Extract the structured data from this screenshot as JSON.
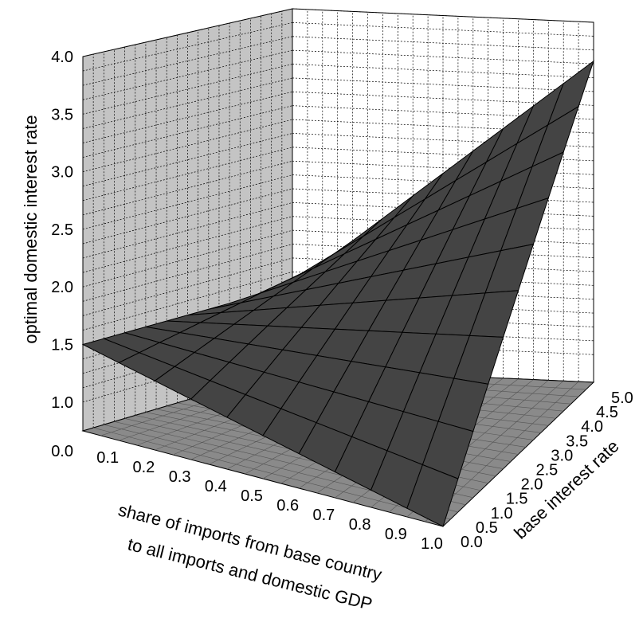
{
  "chart_data": {
    "type": "surface3d",
    "title": "",
    "xlabel_line1": "share of imports from base country",
    "xlabel_line2": "to all imports and domestic GDP",
    "ylabel": "base interest rate",
    "zlabel": "optimal domestic interest rate",
    "x_ticks": [
      "0.0",
      "0.1",
      "0.2",
      "0.3",
      "0.4",
      "0.5",
      "0.6",
      "0.7",
      "0.8",
      "0.9",
      "1.0"
    ],
    "y_ticks": [
      "0.0",
      "0.5",
      "1.0",
      "1.5",
      "2.0",
      "2.5",
      "3.0",
      "3.5",
      "4.0",
      "4.5",
      "5.0"
    ],
    "z_ticks": [
      "1.0",
      "1.5",
      "2.0",
      "2.5",
      "3.0",
      "3.5",
      "4.0"
    ],
    "xlim": [
      0,
      1
    ],
    "ylim": [
      0,
      5
    ],
    "zlim": [
      0.75,
      4.0
    ],
    "corners": {
      "x0_y0": 1.5,
      "x0_y5": 1.5,
      "x1_y0": 0.75,
      "x1_y5": 3.65
    },
    "colors": {
      "surface": "#444444",
      "floor": "#8a8a8a",
      "left_wall": "#c4c4c4",
      "back_wall": "#ffffff"
    }
  }
}
